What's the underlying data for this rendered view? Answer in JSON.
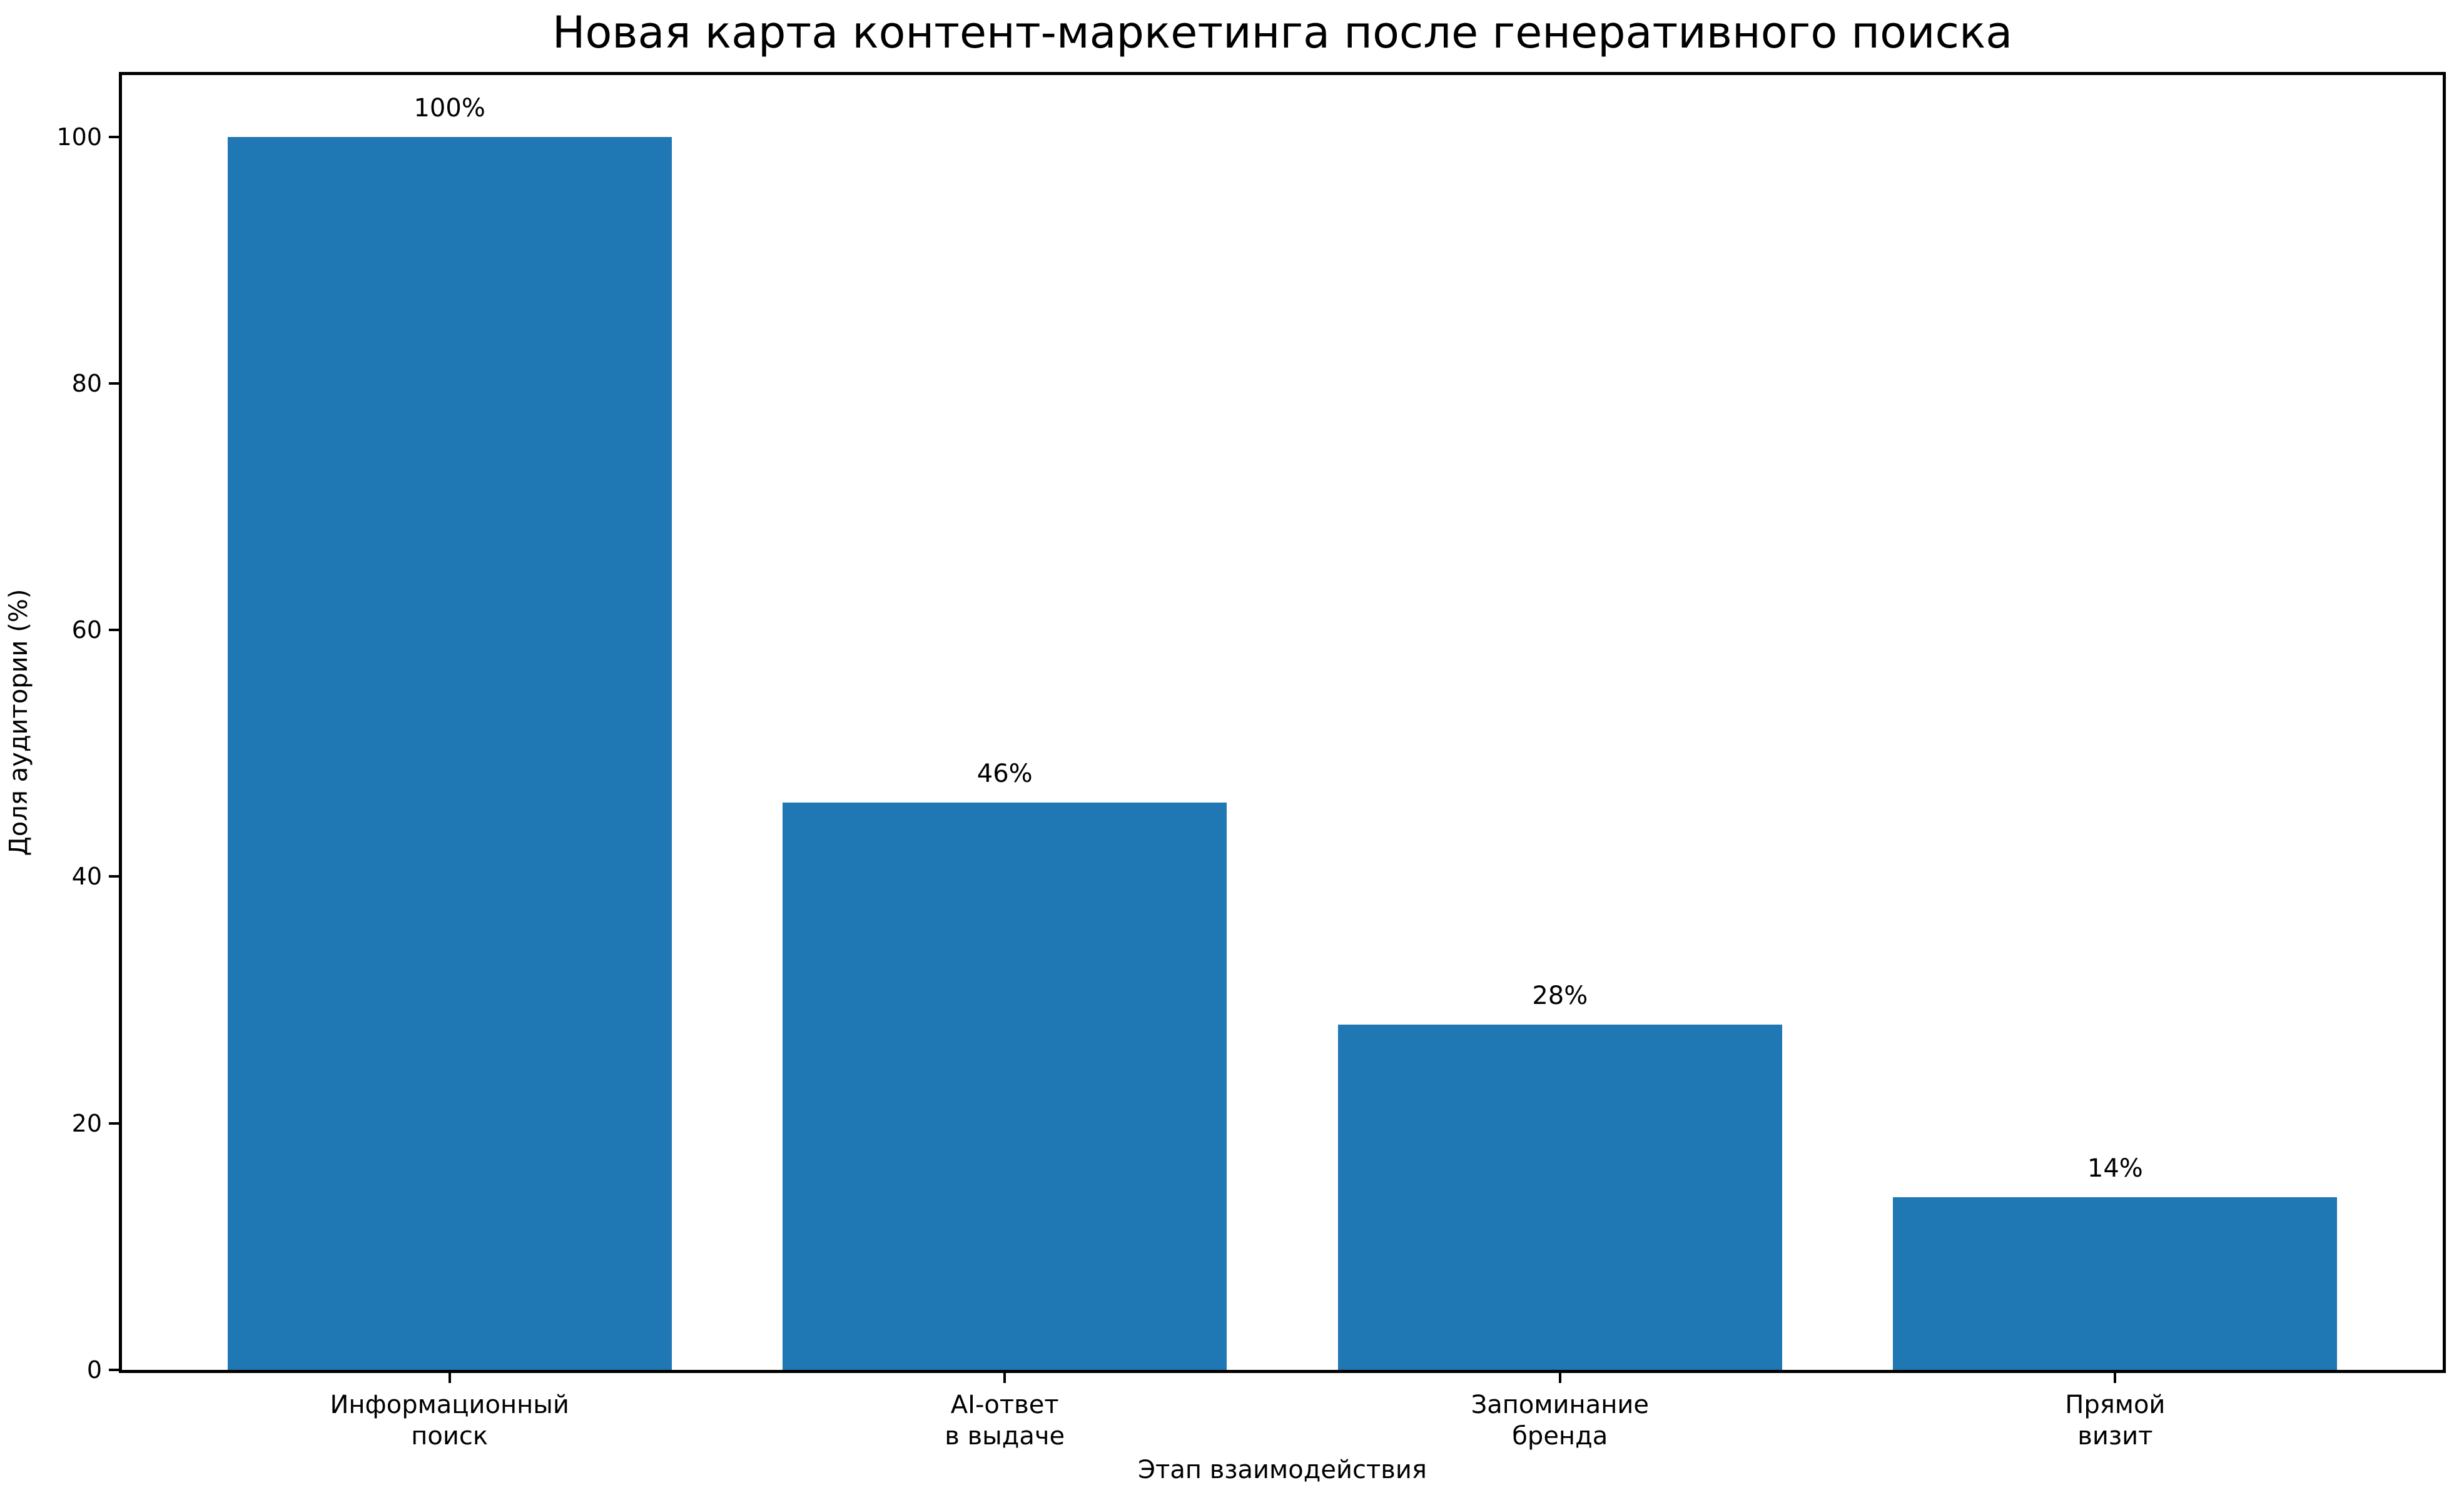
{
  "chart_data": {
    "type": "bar",
    "title": "Новая карта контент-маркетинга после генеративного поиска",
    "xlabel": "Этап взаимодействия",
    "ylabel": "Доля аудитории (%)",
    "categories": [
      "Информационный\nпоиск",
      "AI-ответ\nв выдаче",
      "Запоминание\nбренда",
      "Прямой\nвизит"
    ],
    "values": [
      100,
      46,
      28,
      14
    ],
    "value_labels": [
      "100%",
      "46%",
      "28%",
      "14%"
    ],
    "yticks": [
      0,
      20,
      40,
      60,
      80,
      100
    ],
    "ylim": [
      0,
      105
    ],
    "xlim": [
      -0.59,
      3.59
    ],
    "bar_width": 0.8,
    "bar_color": "#1f77b4",
    "text_color": "#000000",
    "grid": false,
    "legend_position": "none"
  }
}
